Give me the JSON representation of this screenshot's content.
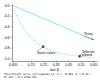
{
  "chart_data": {
    "type": "line",
    "xlabel": "tan β",
    "xlim": [
      0.0,
      0.68
    ],
    "ylim": [
      -1.05,
      0.02
    ],
    "xticks": [
      0.005,
      0.15,
      0.25,
      0.35,
      0.45,
      0.55,
      0.65
    ],
    "yticks": [
      {
        "value": -1.0,
        "label": "-1.0"
      },
      -0.8,
      -0.6,
      -0.4,
      -0.2,
      {
        "value": 0.0,
        "label": "0.0"
      }
    ],
    "grid": false,
    "series": [
      {
        "type": "line",
        "x": [
          0.005,
          0.65
        ],
        "values": [
          -0.005,
          -0.65
        ],
        "color": "#00cfef",
        "line_style": "solid"
      },
      {
        "type": "line",
        "x": [
          0.02,
          0.03,
          0.04,
          0.05,
          0.06,
          0.07,
          0.08,
          0.09,
          0.1,
          0.12,
          0.14,
          0.16,
          0.18,
          0.2,
          0.22,
          0.24,
          0.26,
          0.28,
          0.3,
          0.33,
          0.36,
          0.39,
          0.42,
          0.45,
          0.48,
          0.51,
          0.54,
          0.57,
          0.6,
          0.63,
          0.65
        ],
        "values": [
          -0.1,
          -0.15,
          -0.2,
          -0.25,
          -0.3,
          -0.35,
          -0.39,
          -0.43,
          -0.47,
          -0.53,
          -0.58,
          -0.63,
          -0.67,
          -0.71,
          -0.74,
          -0.77,
          -0.8,
          -0.82,
          -0.84,
          -0.87,
          -0.89,
          -0.91,
          -0.92,
          -0.935,
          -0.945,
          -0.955,
          -0.963,
          -0.97,
          -0.975,
          -0.98,
          -0.983
        ],
        "color": "#00cfef",
        "line_style": "dotted",
        "marker": "point"
      },
      {
        "type": "scatter",
        "x": [
          0.25
        ],
        "values": [
          -0.78
        ],
        "color": "#444444",
        "marker": "square"
      },
      {
        "type": "scatter",
        "x": [
          0.54
        ],
        "values": [
          -0.963
        ],
        "color": "#444444",
        "marker": "square"
      }
    ],
    "annotations": [
      {
        "text": "Theory",
        "x": 0.575,
        "y": -0.58,
        "arrow_x": 0.65,
        "arrow_y": -0.65
      },
      {
        "text": "Deflection\nplanned",
        "x": 0.56,
        "y": -0.91,
        "arrow_x": 0.54,
        "arrow_y": -0.963
      },
      {
        "text": "Gravel surface",
        "x": 0.2,
        "y": -0.87,
        "arrow_x": 0.25,
        "arrow_y": -0.78
      }
    ],
    "footnote": [
      "Theoretical curve corresponds to: a = -0.994, b = 0 mm⁻¹",
      "R²_min = 0.1 b=62.7%)"
    ]
  }
}
